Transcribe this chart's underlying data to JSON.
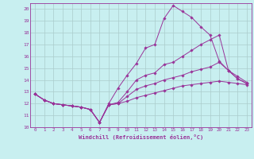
{
  "xlabel": "Windchill (Refroidissement éolien,°C)",
  "background_color": "#c8eff0",
  "grid_color": "#aacccc",
  "line_color": "#993399",
  "xlim": [
    -0.5,
    23.5
  ],
  "ylim": [
    10,
    20.5
  ],
  "xticks": [
    0,
    1,
    2,
    3,
    4,
    5,
    6,
    7,
    8,
    9,
    10,
    11,
    12,
    13,
    14,
    15,
    16,
    17,
    18,
    19,
    20,
    21,
    22,
    23
  ],
  "yticks": [
    10,
    11,
    12,
    13,
    14,
    15,
    16,
    17,
    18,
    19,
    20
  ],
  "lines": [
    {
      "x": [
        0,
        1,
        2,
        3,
        4,
        5,
        6,
        7,
        8,
        9,
        10,
        11,
        12,
        13,
        14,
        15,
        16,
        17,
        18,
        19,
        20,
        21,
        22,
        23
      ],
      "y": [
        12.8,
        12.3,
        12.0,
        11.9,
        11.8,
        11.7,
        11.5,
        10.4,
        12.0,
        13.3,
        14.4,
        15.4,
        16.7,
        17.0,
        19.2,
        20.3,
        19.8,
        19.3,
        18.5,
        17.8,
        15.6,
        14.8,
        14.1,
        13.7
      ]
    },
    {
      "x": [
        0,
        1,
        2,
        3,
        4,
        5,
        6,
        7,
        8,
        9,
        10,
        11,
        12,
        13,
        14,
        15,
        16,
        17,
        18,
        19,
        20,
        21,
        22,
        23
      ],
      "y": [
        12.8,
        12.3,
        12.0,
        11.9,
        11.8,
        11.7,
        11.5,
        10.4,
        11.9,
        12.1,
        13.0,
        14.0,
        14.4,
        14.6,
        15.3,
        15.5,
        16.0,
        16.5,
        17.0,
        17.4,
        17.8,
        14.8,
        14.1,
        13.7
      ]
    },
    {
      "x": [
        0,
        1,
        2,
        3,
        4,
        5,
        6,
        7,
        8,
        9,
        10,
        11,
        12,
        13,
        14,
        15,
        16,
        17,
        18,
        19,
        20,
        21,
        22,
        23
      ],
      "y": [
        12.8,
        12.3,
        12.0,
        11.9,
        11.8,
        11.7,
        11.5,
        10.4,
        11.9,
        12.0,
        12.6,
        13.2,
        13.5,
        13.7,
        14.0,
        14.2,
        14.4,
        14.7,
        14.9,
        15.1,
        15.5,
        14.8,
        14.3,
        13.8
      ]
    },
    {
      "x": [
        0,
        1,
        2,
        3,
        4,
        5,
        6,
        7,
        8,
        9,
        10,
        11,
        12,
        13,
        14,
        15,
        16,
        17,
        18,
        19,
        20,
        21,
        22,
        23
      ],
      "y": [
        12.8,
        12.3,
        12.0,
        11.9,
        11.8,
        11.7,
        11.5,
        10.4,
        11.9,
        12.0,
        12.2,
        12.5,
        12.7,
        12.9,
        13.1,
        13.3,
        13.5,
        13.6,
        13.7,
        13.8,
        13.9,
        13.8,
        13.7,
        13.6
      ]
    }
  ]
}
